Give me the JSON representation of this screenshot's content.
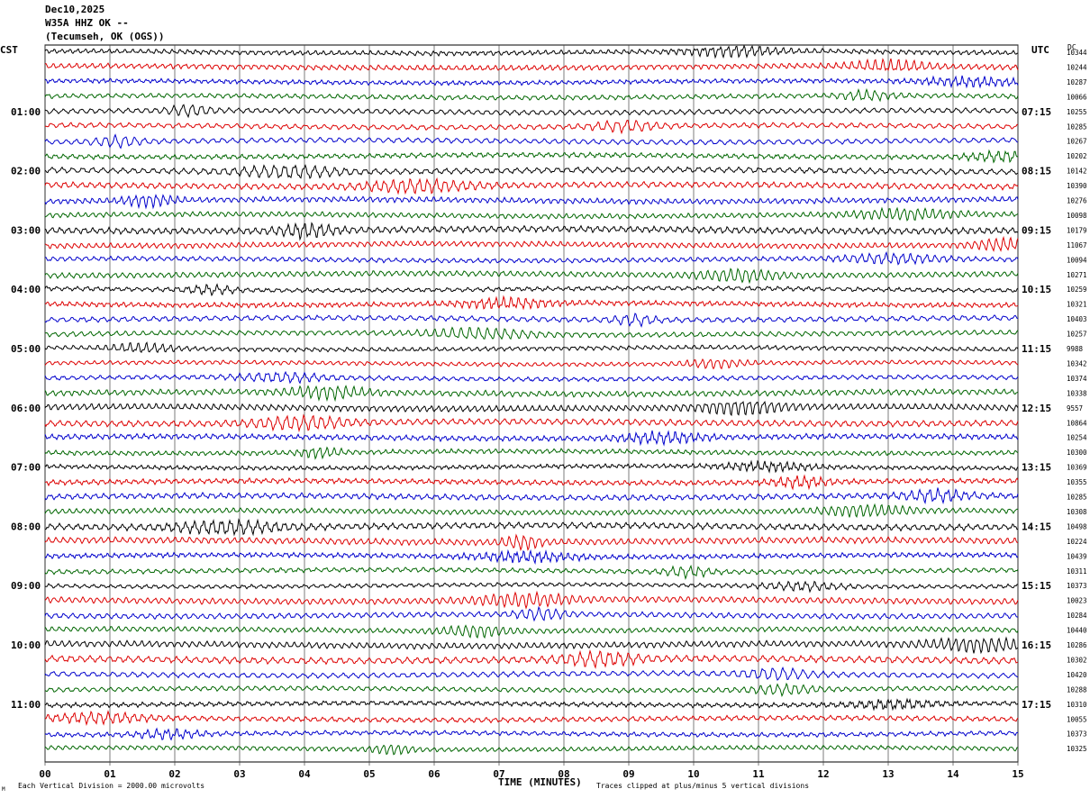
{
  "header": {
    "date": "Dec10,2025",
    "station": "W35A HHZ OK --",
    "location": "(Tecumseh, OK (OGS))"
  },
  "axes": {
    "left_tz": "CST",
    "right_tz": "UTC",
    "dc_header": "DC"
  },
  "footer": {
    "scale_note": "Each Vertical Division = 2000.00 microvolts",
    "xlabel": "TIME (MINUTES)",
    "clip_note": "Traces clipped at plus/minus 5 vertical divisions",
    "mark": "M"
  },
  "colors": {
    "trace_cycle": [
      "#000000",
      "#dd0000",
      "#0000cc",
      "#006600"
    ],
    "grid": "#000000"
  },
  "chart_data": {
    "type": "line",
    "subtype": "helicorder",
    "xlabel": "TIME (MINUTES)",
    "x_ticks": [
      "00",
      "01",
      "02",
      "03",
      "04",
      "05",
      "06",
      "07",
      "08",
      "09",
      "10",
      "11",
      "12",
      "13",
      "14",
      "15"
    ],
    "xlim": [
      0,
      15
    ],
    "left_time_labels": [
      "01:00",
      "02:00",
      "03:00",
      "04:00",
      "05:00",
      "06:00",
      "07:00",
      "08:00",
      "09:00",
      "10:00",
      "11:00"
    ],
    "right_time_labels": [
      "07:15",
      "08:15",
      "09:15",
      "10:15",
      "11:15",
      "12:15",
      "13:15",
      "14:15",
      "15:15",
      "16:15",
      "17:15"
    ],
    "traces_per_hour": 4,
    "trace_count": 48,
    "dc_offsets": [
      "10344",
      "10244",
      "10287",
      "10066",
      "10255",
      "10285",
      "10267",
      "10202",
      "10142",
      "10390",
      "10276",
      "10098",
      "10179",
      "11067",
      "10094",
      "10271",
      "10259",
      "10321",
      "10403",
      "10257",
      "9988",
      "10342",
      "10374",
      "10338",
      "9557",
      "10864",
      "10254",
      "10300",
      "10369",
      "10355",
      "10285",
      "10308",
      "10498",
      "10224",
      "10439",
      "10311",
      "10373",
      "10023",
      "10284",
      "10440",
      "10286",
      "10302",
      "10420",
      "10288",
      "10310",
      "10055",
      "10373",
      "10325"
    ]
  }
}
